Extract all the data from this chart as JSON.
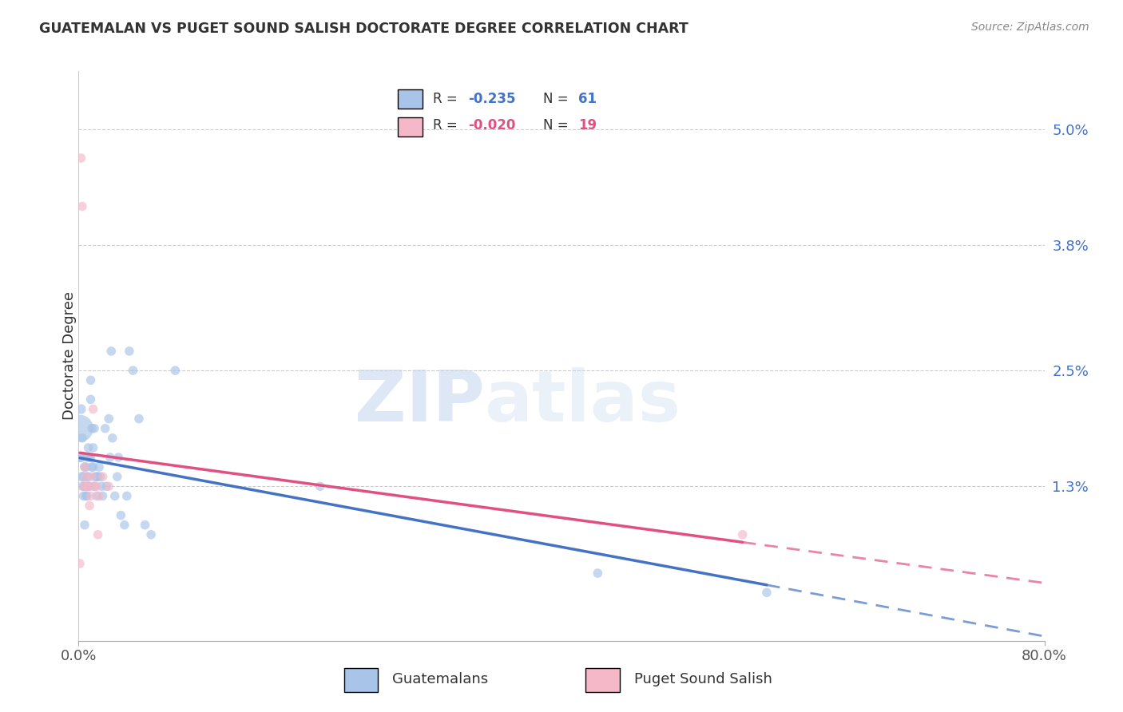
{
  "title": "GUATEMALAN VS PUGET SOUND SALISH DOCTORATE DEGREE CORRELATION CHART",
  "source": "Source: ZipAtlas.com",
  "ylabel": "Doctorate Degree",
  "xlim": [
    0.0,
    0.8
  ],
  "ylim": [
    -0.003,
    0.056
  ],
  "right_yticks": [
    0.05,
    0.038,
    0.025,
    0.013
  ],
  "right_yticklabels": [
    "5.0%",
    "3.8%",
    "2.5%",
    "1.3%"
  ],
  "blue_R": -0.235,
  "blue_N": 61,
  "pink_R": -0.02,
  "pink_N": 19,
  "blue_color": "#a8c4e8",
  "pink_color": "#f4b8c8",
  "blue_line_color": "#4472c4",
  "pink_line_color": "#e05080",
  "watermark_zip": "ZIP",
  "watermark_atlas": "atlas",
  "legend_labels": [
    "Guatemalans",
    "Puget Sound Salish"
  ],
  "blue_scatter_x": [
    0.001,
    0.001,
    0.002,
    0.002,
    0.003,
    0.003,
    0.003,
    0.004,
    0.004,
    0.005,
    0.005,
    0.005,
    0.006,
    0.006,
    0.006,
    0.007,
    0.007,
    0.007,
    0.008,
    0.008,
    0.008,
    0.009,
    0.009,
    0.01,
    0.01,
    0.01,
    0.011,
    0.011,
    0.012,
    0.012,
    0.013,
    0.013,
    0.014,
    0.015,
    0.015,
    0.016,
    0.017,
    0.018,
    0.019,
    0.02,
    0.022,
    0.023,
    0.025,
    0.026,
    0.027,
    0.028,
    0.03,
    0.032,
    0.033,
    0.035,
    0.038,
    0.04,
    0.042,
    0.045,
    0.05,
    0.055,
    0.06,
    0.08,
    0.2,
    0.43,
    0.57
  ],
  "blue_scatter_y": [
    0.019,
    0.016,
    0.021,
    0.016,
    0.014,
    0.013,
    0.018,
    0.014,
    0.012,
    0.015,
    0.013,
    0.009,
    0.015,
    0.013,
    0.012,
    0.016,
    0.014,
    0.012,
    0.014,
    0.013,
    0.017,
    0.013,
    0.016,
    0.016,
    0.022,
    0.024,
    0.019,
    0.015,
    0.015,
    0.017,
    0.013,
    0.019,
    0.014,
    0.014,
    0.012,
    0.014,
    0.015,
    0.014,
    0.013,
    0.012,
    0.019,
    0.013,
    0.02,
    0.016,
    0.027,
    0.018,
    0.012,
    0.014,
    0.016,
    0.01,
    0.009,
    0.012,
    0.027,
    0.025,
    0.02,
    0.009,
    0.008,
    0.025,
    0.013,
    0.004,
    0.002
  ],
  "blue_scatter_size": [
    600,
    80,
    80,
    80,
    80,
    70,
    70,
    70,
    70,
    70,
    70,
    70,
    70,
    70,
    70,
    70,
    70,
    70,
    70,
    70,
    70,
    70,
    70,
    70,
    70,
    70,
    70,
    70,
    70,
    70,
    70,
    70,
    70,
    70,
    70,
    70,
    70,
    70,
    70,
    70,
    70,
    70,
    70,
    70,
    70,
    70,
    70,
    70,
    70,
    70,
    70,
    70,
    70,
    70,
    70,
    70,
    70,
    70,
    70,
    70,
    70
  ],
  "pink_scatter_x": [
    0.001,
    0.002,
    0.003,
    0.004,
    0.005,
    0.006,
    0.007,
    0.008,
    0.009,
    0.01,
    0.011,
    0.012,
    0.013,
    0.015,
    0.016,
    0.017,
    0.02,
    0.025,
    0.55
  ],
  "pink_scatter_y": [
    0.005,
    0.047,
    0.042,
    0.013,
    0.015,
    0.014,
    0.013,
    0.013,
    0.011,
    0.012,
    0.014,
    0.021,
    0.013,
    0.013,
    0.008,
    0.012,
    0.014,
    0.013,
    0.008
  ],
  "pink_scatter_size": [
    70,
    70,
    70,
    70,
    70,
    70,
    70,
    70,
    70,
    70,
    70,
    70,
    70,
    70,
    70,
    70,
    70,
    70,
    70
  ],
  "blue_trend_x_start": 0.001,
  "blue_trend_x_solid_end": 0.57,
  "pink_trend_x_start": 0.001,
  "pink_trend_x_solid_end": 0.55,
  "trend_x_end": 0.8
}
